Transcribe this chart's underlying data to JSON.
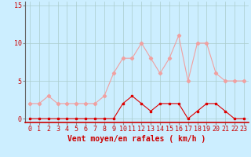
{
  "hours": [
    0,
    1,
    2,
    3,
    4,
    5,
    6,
    7,
    8,
    9,
    10,
    11,
    12,
    13,
    14,
    15,
    16,
    17,
    18,
    19,
    20,
    21,
    22,
    23
  ],
  "wind_avg": [
    0,
    0,
    0,
    0,
    0,
    0,
    0,
    0,
    0,
    0,
    2,
    3,
    2,
    1,
    2,
    2,
    2,
    0,
    1,
    2,
    2,
    1,
    0,
    0
  ],
  "wind_gust": [
    2,
    2,
    3,
    2,
    2,
    2,
    2,
    2,
    3,
    6,
    8,
    8,
    10,
    8,
    6,
    8,
    11,
    5,
    10,
    10,
    6,
    5,
    5,
    5
  ],
  "color_avg": "#dd0000",
  "color_gust": "#f0a0a0",
  "bg_color": "#cceeff",
  "grid_color": "#aacccc",
  "xlabel": "Vent moyen/en rafales ( km/h )",
  "ylabel_ticks": [
    0,
    5,
    10,
    15
  ],
  "ylim": [
    -0.5,
    15.5
  ],
  "xlim": [
    -0.5,
    23.5
  ],
  "title_color": "#cc0000",
  "tick_fontsize": 6,
  "label_fontsize": 7
}
